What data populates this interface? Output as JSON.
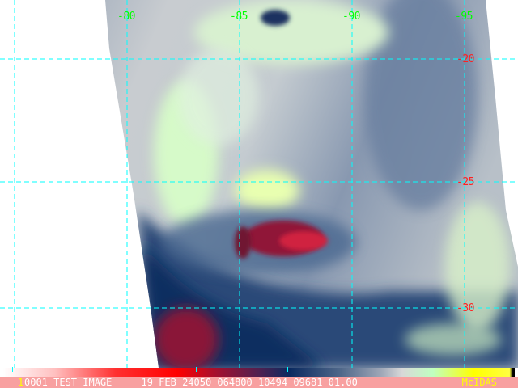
{
  "image": {
    "type": "satellite infrared image",
    "grid_color": "#00ffff",
    "longitude_labels": [
      "-80",
      "-85",
      "-90",
      "-95"
    ],
    "latitude_labels": [
      "-20",
      "-25",
      "-30"
    ],
    "longitude_label_color": "#00ff00",
    "latitude_label_color": "#ff2020"
  },
  "footer": {
    "frame_marker": "1",
    "info_text": "0001 TEST IMAGE     19 FEB 24050 064800 10494 09681 01.00",
    "brand": "McIDAS",
    "background_color": "#f8a0a0"
  }
}
